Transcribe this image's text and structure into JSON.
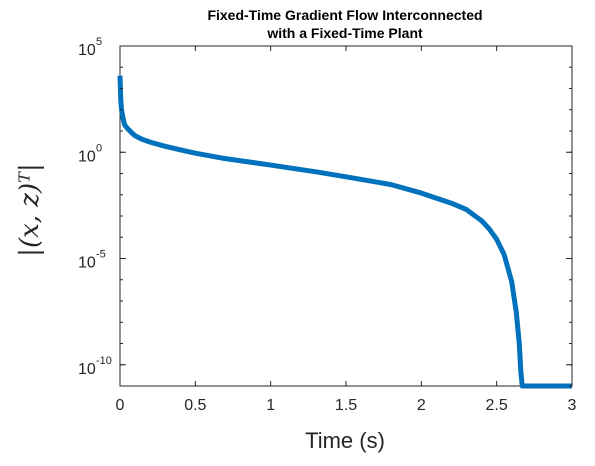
{
  "chart_data": {
    "type": "line",
    "title_line1": "Fixed-Time Gradient Flow Interconnected",
    "title_line2": "with a Fixed-Time Plant",
    "xlabel": "Time (s)",
    "ylabel": "|(x, z)ᵀ|",
    "yscale": "log",
    "xlim": [
      0,
      3
    ],
    "ylim": [
      1e-11,
      100000.0
    ],
    "x_ticks": [
      "0",
      "0.5",
      "1",
      "1.5",
      "2",
      "2.5",
      "3"
    ],
    "y_ticks": [
      {
        "base": "10",
        "exp": "-10",
        "value": 1e-10
      },
      {
        "base": "10",
        "exp": "-5",
        "value": 1e-05
      },
      {
        "base": "10",
        "exp": "0",
        "value": 1
      },
      {
        "base": "10",
        "exp": "5",
        "value": 100000.0
      }
    ],
    "grid": false,
    "line_color": "#0072BD",
    "series": [
      {
        "x": [
          0,
          0.005,
          0.01,
          0.02,
          0.03,
          0.05,
          0.08,
          0.1,
          0.15,
          0.2,
          0.3,
          0.4,
          0.5,
          0.7,
          1.0,
          1.3,
          1.5,
          1.8,
          2.0,
          2.2,
          2.3,
          2.4,
          2.45,
          2.5,
          2.55,
          2.6,
          2.63,
          2.65,
          2.66,
          2.67,
          2.68,
          2.7,
          3.0
        ],
        "y": [
          4000.0,
          300.0,
          100.0,
          40.0,
          20.0,
          13.0,
          8,
          6,
          4,
          3,
          1.9,
          1.3,
          0.9,
          0.5,
          0.25,
          0.12,
          0.07,
          0.03,
          0.012,
          0.004,
          0.002,
          0.0006,
          0.00025,
          8e-05,
          1.5e-05,
          8e-07,
          3e-08,
          1e-09,
          5e-11,
          1e-11,
          1e-11,
          1e-11,
          1e-11
        ]
      }
    ]
  }
}
